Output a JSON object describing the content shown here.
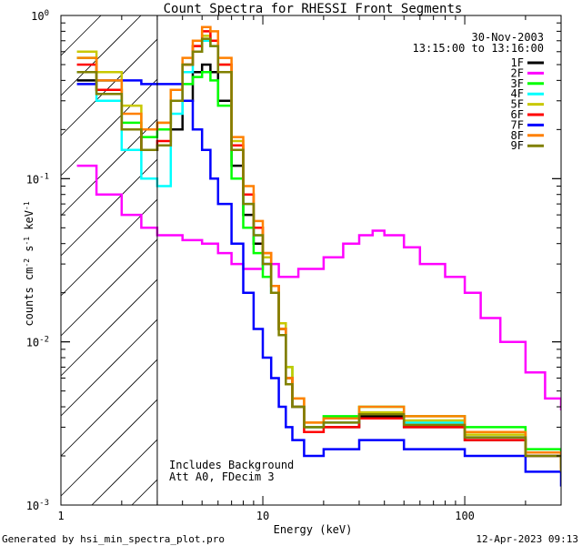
{
  "chart_data": {
    "type": "line",
    "title": "Count Spectra for RHESSI Front Segments",
    "xlabel": "Energy (keV)",
    "ylabel": "counts cm^-2 s^-1 keV^-1",
    "x_scale": "log",
    "y_scale": "log",
    "xlim": [
      1,
      300
    ],
    "ylim": [
      0.001,
      1
    ],
    "x_ticks": [
      {
        "value": 1,
        "label": "1"
      },
      {
        "value": 10,
        "label": "10"
      },
      {
        "value": 100,
        "label": "100"
      }
    ],
    "y_ticks": [
      {
        "value": 1,
        "label": "10^0"
      },
      {
        "value": 0.1,
        "label": "10^-1"
      },
      {
        "value": 0.01,
        "label": "10^-2"
      },
      {
        "value": 0.001,
        "label": "10^-3"
      }
    ],
    "shaded_region_kev": [
      1,
      3
    ],
    "date": "30-Nov-2003",
    "time_range": "13:15:00 to 13:16:00",
    "notes": [
      "Includes Background",
      "Att A0, FDecim 3"
    ],
    "series": [
      {
        "name": "1F",
        "color": "#000000",
        "x": [
          1.2,
          1.5,
          2,
          2.5,
          3,
          3.5,
          4,
          4.5,
          5,
          5.5,
          6,
          7,
          8,
          9,
          10,
          11,
          12,
          13,
          14,
          16,
          20,
          30,
          50,
          100,
          200,
          300
        ],
        "y": [
          0.4,
          0.35,
          0.2,
          0.15,
          0.16,
          0.2,
          0.3,
          0.45,
          0.5,
          0.45,
          0.3,
          0.12,
          0.06,
          0.04,
          0.03,
          0.02,
          0.012,
          0.006,
          0.004,
          0.003,
          0.003,
          0.0035,
          0.003,
          0.0025,
          0.002,
          0.0018
        ]
      },
      {
        "name": "2F",
        "color": "#ff00ff",
        "x": [
          1.2,
          1.5,
          2,
          2.5,
          3,
          4,
          5,
          6,
          7,
          8,
          10,
          12,
          15,
          20,
          25,
          30,
          35,
          40,
          50,
          60,
          80,
          100,
          120,
          150,
          200,
          250,
          300
        ],
        "y": [
          0.12,
          0.08,
          0.06,
          0.05,
          0.045,
          0.042,
          0.04,
          0.035,
          0.03,
          0.028,
          0.03,
          0.025,
          0.028,
          0.033,
          0.04,
          0.045,
          0.048,
          0.045,
          0.038,
          0.03,
          0.025,
          0.02,
          0.014,
          0.01,
          0.0065,
          0.0045,
          0.0038
        ]
      },
      {
        "name": "3F",
        "color": "#00ff00",
        "x": [
          1.2,
          1.5,
          2,
          2.5,
          3,
          3.5,
          4,
          4.5,
          5,
          5.5,
          6,
          7,
          8,
          9,
          10,
          11,
          12,
          13,
          14,
          16,
          20,
          30,
          50,
          100,
          200,
          300
        ],
        "y": [
          0.55,
          0.4,
          0.22,
          0.18,
          0.2,
          0.3,
          0.38,
          0.42,
          0.45,
          0.4,
          0.28,
          0.1,
          0.05,
          0.035,
          0.025,
          0.02,
          0.012,
          0.007,
          0.004,
          0.003,
          0.0035,
          0.004,
          0.0035,
          0.003,
          0.0022,
          0.0018
        ]
      },
      {
        "name": "4F",
        "color": "#00ffff",
        "x": [
          1.2,
          1.5,
          2,
          2.5,
          3,
          3.5,
          4,
          4.5,
          5,
          5.5,
          6,
          7,
          8,
          9,
          10,
          11,
          12,
          13,
          14,
          16,
          20,
          30,
          50,
          100,
          200,
          300
        ],
        "y": [
          0.45,
          0.3,
          0.15,
          0.1,
          0.09,
          0.25,
          0.45,
          0.6,
          0.7,
          0.65,
          0.45,
          0.15,
          0.07,
          0.045,
          0.03,
          0.02,
          0.012,
          0.006,
          0.004,
          0.003,
          0.0032,
          0.0036,
          0.0032,
          0.0026,
          0.002,
          0.0017
        ]
      },
      {
        "name": "5F",
        "color": "#c8c800",
        "x": [
          1.2,
          1.5,
          2,
          2.5,
          3,
          3.5,
          4,
          4.5,
          5,
          5.5,
          6,
          7,
          8,
          9,
          10,
          11,
          12,
          13,
          14,
          16,
          20,
          30,
          50,
          100,
          200,
          300
        ],
        "y": [
          0.6,
          0.45,
          0.28,
          0.2,
          0.22,
          0.35,
          0.5,
          0.65,
          0.75,
          0.7,
          0.5,
          0.17,
          0.08,
          0.05,
          0.033,
          0.022,
          0.013,
          0.007,
          0.0045,
          0.0032,
          0.0034,
          0.0037,
          0.0033,
          0.0027,
          0.0021,
          0.0017
        ]
      },
      {
        "name": "6F",
        "color": "#ff0000",
        "x": [
          1.2,
          1.5,
          2,
          2.5,
          3,
          3.5,
          4,
          4.5,
          5,
          5.5,
          6,
          7,
          8,
          9,
          10,
          11,
          12,
          13,
          14,
          16,
          20,
          30,
          50,
          100,
          200,
          300
        ],
        "y": [
          0.5,
          0.35,
          0.2,
          0.15,
          0.17,
          0.3,
          0.5,
          0.65,
          0.8,
          0.7,
          0.5,
          0.16,
          0.08,
          0.05,
          0.035,
          0.022,
          0.012,
          0.006,
          0.004,
          0.0028,
          0.003,
          0.0034,
          0.003,
          0.0025,
          0.002,
          0.0016
        ]
      },
      {
        "name": "7F",
        "color": "#0000ff",
        "x": [
          1.2,
          1.5,
          2,
          2.5,
          3,
          3.5,
          4,
          4.5,
          5,
          5.5,
          6,
          7,
          8,
          9,
          10,
          11,
          12,
          13,
          14,
          16,
          20,
          30,
          50,
          100,
          200,
          300
        ],
        "y": [
          0.38,
          0.4,
          0.4,
          0.38,
          0.38,
          0.38,
          0.3,
          0.2,
          0.15,
          0.1,
          0.07,
          0.04,
          0.02,
          0.012,
          0.008,
          0.006,
          0.004,
          0.003,
          0.0025,
          0.002,
          0.0022,
          0.0025,
          0.0022,
          0.002,
          0.0016,
          0.0013
        ]
      },
      {
        "name": "8F",
        "color": "#ff8000",
        "x": [
          1.2,
          1.5,
          2,
          2.5,
          3,
          3.5,
          4,
          4.5,
          5,
          5.5,
          6,
          7,
          8,
          9,
          10,
          11,
          12,
          13,
          14,
          16,
          20,
          30,
          50,
          100,
          200,
          300
        ],
        "y": [
          0.55,
          0.4,
          0.25,
          0.2,
          0.22,
          0.35,
          0.55,
          0.7,
          0.85,
          0.8,
          0.55,
          0.18,
          0.09,
          0.055,
          0.035,
          0.022,
          0.012,
          0.006,
          0.0045,
          0.0032,
          0.0034,
          0.004,
          0.0035,
          0.0028,
          0.0021,
          0.0017
        ]
      },
      {
        "name": "9F",
        "color": "#808000",
        "x": [
          1.2,
          1.5,
          2,
          2.5,
          3,
          3.5,
          4,
          4.5,
          5,
          5.5,
          6,
          7,
          8,
          9,
          10,
          11,
          12,
          13,
          14,
          16,
          20,
          30,
          50,
          100,
          200,
          300
        ],
        "y": [
          0.45,
          0.33,
          0.2,
          0.15,
          0.16,
          0.3,
          0.5,
          0.6,
          0.72,
          0.65,
          0.45,
          0.15,
          0.07,
          0.045,
          0.03,
          0.02,
          0.011,
          0.0055,
          0.004,
          0.003,
          0.0032,
          0.0036,
          0.0031,
          0.0026,
          0.002,
          0.0016
        ]
      }
    ]
  },
  "footer": {
    "left": "Generated by hsi_min_spectra_plot.pro",
    "right": "12-Apr-2023 09:13"
  }
}
